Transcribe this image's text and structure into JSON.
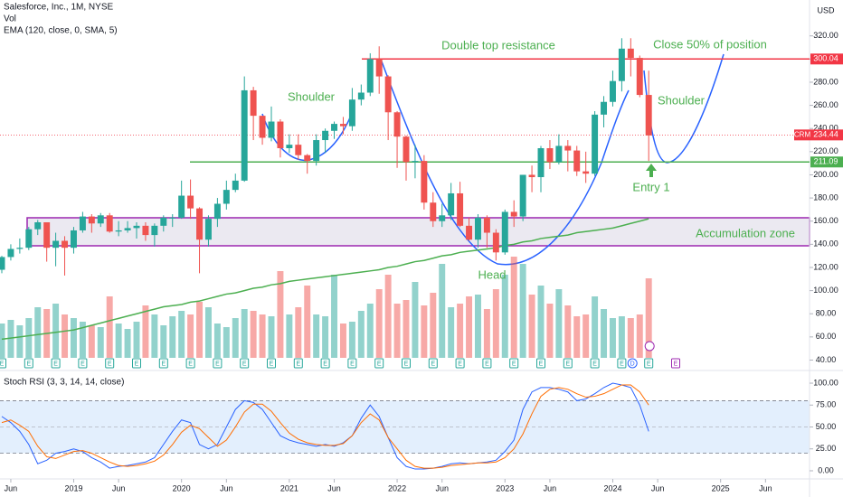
{
  "header": {
    "title": "Salesforce, Inc., 1M, NYSE",
    "volume_label": "Vol",
    "ema_label": "EMA (120, close, 0, SMA, 5)",
    "currency": "USD"
  },
  "chart_data": {
    "type": "candlestick",
    "x": [
      "2018-05",
      "2018-06",
      "2018-07",
      "2018-08",
      "2018-09",
      "2018-10",
      "2018-11",
      "2018-12",
      "2019-01",
      "2019-02",
      "2019-03",
      "2019-04",
      "2019-05",
      "2019-06",
      "2019-07",
      "2019-08",
      "2019-09",
      "2019-10",
      "2019-11",
      "2019-12",
      "2020-01",
      "2020-02",
      "2020-03",
      "2020-04",
      "2020-05",
      "2020-06",
      "2020-07",
      "2020-08",
      "2020-09",
      "2020-10",
      "2020-11",
      "2020-12",
      "2021-01",
      "2021-02",
      "2021-03",
      "2021-04",
      "2021-05",
      "2021-06",
      "2021-07",
      "2021-08",
      "2021-09",
      "2021-10",
      "2021-11",
      "2021-12",
      "2022-01",
      "2022-02",
      "2022-03",
      "2022-04",
      "2022-05",
      "2022-06",
      "2022-07",
      "2022-08",
      "2022-09",
      "2022-10",
      "2022-11",
      "2022-12",
      "2023-01",
      "2023-02",
      "2023-03",
      "2023-04",
      "2023-05",
      "2023-06",
      "2023-07",
      "2023-08",
      "2023-09",
      "2023-10",
      "2023-11",
      "2023-12",
      "2024-01",
      "2024-02",
      "2024-03",
      "2024-04",
      "2024-05"
    ],
    "ohlc": [
      [
        118,
        130,
        115,
        129
      ],
      [
        129,
        140,
        126,
        136
      ],
      [
        136,
        145,
        132,
        137
      ],
      [
        137,
        155,
        135,
        153
      ],
      [
        153,
        161,
        148,
        159
      ],
      [
        159,
        159,
        125,
        137
      ],
      [
        137,
        150,
        121,
        143
      ],
      [
        143,
        147,
        113,
        137
      ],
      [
        137,
        155,
        132,
        152
      ],
      [
        152,
        168,
        150,
        164
      ],
      [
        164,
        166,
        150,
        158
      ],
      [
        158,
        167,
        155,
        165
      ],
      [
        165,
        167,
        150,
        151
      ],
      [
        151,
        160,
        147,
        152
      ],
      [
        152,
        160,
        150,
        154
      ],
      [
        154,
        159,
        145,
        156
      ],
      [
        156,
        159,
        143,
        148
      ],
      [
        148,
        158,
        138,
        156
      ],
      [
        156,
        165,
        151,
        163
      ],
      [
        163,
        166,
        155,
        163
      ],
      [
        163,
        195,
        162,
        182
      ],
      [
        182,
        196,
        162,
        171
      ],
      [
        171,
        172,
        115,
        144
      ],
      [
        144,
        165,
        138,
        162
      ],
      [
        162,
        180,
        155,
        175
      ],
      [
        175,
        195,
        170,
        187
      ],
      [
        187,
        201,
        185,
        195
      ],
      [
        195,
        285,
        194,
        273
      ],
      [
        273,
        276,
        230,
        251
      ],
      [
        251,
        251,
        226,
        232
      ],
      [
        232,
        259,
        229,
        246
      ],
      [
        246,
        248,
        215,
        223
      ],
      [
        223,
        235,
        219,
        226
      ],
      [
        226,
        235,
        213,
        217
      ],
      [
        217,
        218,
        201,
        212
      ],
      [
        212,
        235,
        208,
        230
      ],
      [
        230,
        240,
        219,
        238
      ],
      [
        238,
        246,
        231,
        244
      ],
      [
        244,
        250,
        235,
        242
      ],
      [
        242,
        275,
        238,
        265
      ],
      [
        265,
        278,
        260,
        271
      ],
      [
        271,
        305,
        268,
        300
      ],
      [
        300,
        311,
        270,
        285
      ],
      [
        285,
        286,
        230,
        254
      ],
      [
        254,
        255,
        206,
        233
      ],
      [
        233,
        234,
        195,
        211
      ],
      [
        211,
        226,
        197,
        212
      ],
      [
        212,
        217,
        170,
        176
      ],
      [
        176,
        185,
        155,
        160
      ],
      [
        160,
        175,
        155,
        165
      ],
      [
        165,
        193,
        161,
        184
      ],
      [
        184,
        194,
        155,
        156
      ],
      [
        156,
        163,
        143,
        144
      ],
      [
        144,
        166,
        137,
        163
      ],
      [
        163,
        165,
        137,
        150
      ],
      [
        150,
        153,
        126,
        133
      ],
      [
        133,
        170,
        131,
        168
      ],
      [
        168,
        178,
        155,
        164
      ],
      [
        164,
        200,
        160,
        200
      ],
      [
        200,
        208,
        185,
        198
      ],
      [
        198,
        225,
        185,
        223
      ],
      [
        223,
        230,
        205,
        211
      ],
      [
        211,
        235,
        209,
        225
      ],
      [
        225,
        230,
        203,
        221
      ],
      [
        221,
        225,
        199,
        203
      ],
      [
        203,
        220,
        193,
        201
      ],
      [
        201,
        255,
        199,
        252
      ],
      [
        252,
        268,
        241,
        263
      ],
      [
        263,
        290,
        259,
        281
      ],
      [
        281,
        318,
        272,
        309
      ],
      [
        309,
        318,
        285,
        301
      ],
      [
        301,
        303,
        267,
        269
      ],
      [
        269,
        290,
        212,
        234
      ]
    ],
    "volume": [
      95,
      105,
      90,
      110,
      140,
      135,
      150,
      120,
      110,
      100,
      90,
      85,
      170,
      95,
      80,
      100,
      145,
      120,
      90,
      115,
      130,
      120,
      155,
      140,
      95,
      85,
      110,
      135,
      130,
      120,
      115,
      240,
      120,
      140,
      200,
      120,
      115,
      230,
      95,
      100,
      130,
      150,
      190,
      230,
      150,
      160,
      210,
      145,
      180,
      260,
      140,
      150,
      170,
      175,
      135,
      190,
      230,
      280,
      260,
      175,
      200,
      150,
      190,
      145,
      115,
      120,
      170,
      135,
      110,
      115,
      110,
      120,
      220
    ],
    "ema": [
      58,
      59,
      60,
      61,
      62,
      63,
      64,
      65,
      66,
      68,
      70,
      72,
      74,
      76,
      78,
      80,
      82,
      84,
      86,
      87,
      88,
      90,
      91,
      93,
      95,
      97,
      98,
      100,
      102,
      103,
      105,
      106,
      108,
      109,
      110,
      111,
      112,
      113,
      114,
      115,
      116,
      117,
      118,
      120,
      121,
      123,
      125,
      126,
      128,
      130,
      131,
      133,
      134,
      135,
      136,
      137,
      139,
      140,
      142,
      143,
      145,
      146,
      147,
      148,
      150,
      151,
      152,
      153,
      154,
      156,
      158,
      160,
      162
    ],
    "up_color": "#26a69a",
    "down_color": "#ef5350",
    "ema_color": "#4caf50",
    "xlim": [
      "2018-05",
      "2025-11"
    ],
    "xticks": [
      {
        "value": "2018-06",
        "label": "Jun"
      },
      {
        "value": "2019-01",
        "label": "2019"
      },
      {
        "value": "2019-06",
        "label": "Jun"
      },
      {
        "value": "2020-01",
        "label": "2020"
      },
      {
        "value": "2020-06",
        "label": "Jun"
      },
      {
        "value": "2021-01",
        "label": "2021"
      },
      {
        "value": "2021-06",
        "label": "Jun"
      },
      {
        "value": "2022-01",
        "label": "2022"
      },
      {
        "value": "2022-06",
        "label": "Jun"
      },
      {
        "value": "2023-01",
        "label": "2023"
      },
      {
        "value": "2023-06",
        "label": "Jun"
      },
      {
        "value": "2024-01",
        "label": "2024"
      },
      {
        "value": "2024-06",
        "label": "Jun"
      },
      {
        "value": "2025-01",
        "label": "2025"
      },
      {
        "value": "2025-06",
        "label": "Jun"
      }
    ],
    "ylim": [
      31,
      351
    ],
    "yticks": [
      {
        "value": 40,
        "label": "40.00"
      },
      {
        "value": 60,
        "label": "60.00"
      },
      {
        "value": 80,
        "label": "80.00"
      },
      {
        "value": 100,
        "label": "100.00"
      },
      {
        "value": 120,
        "label": "120.00"
      },
      {
        "value": 140,
        "label": "140.00"
      },
      {
        "value": 160,
        "label": "160.00"
      },
      {
        "value": 180,
        "label": "180.00"
      },
      {
        "value": 200,
        "label": "200.00"
      },
      {
        "value": 220,
        "label": "220.00"
      },
      {
        "value": 240,
        "label": "240.00"
      },
      {
        "value": 260,
        "label": "260.00"
      },
      {
        "value": 280,
        "label": "280.00"
      },
      {
        "value": 300,
        "label": "300.00"
      },
      {
        "value": 320,
        "label": "320.00"
      }
    ],
    "levels": [
      {
        "value": 300.04,
        "color": "#f23645"
      },
      {
        "value": 211.09,
        "color": "#4caf50"
      }
    ],
    "last_price": {
      "symbol": "CRM",
      "value": 234.44,
      "color": "#f23645"
    },
    "annotations": [
      "Double top resistance",
      "Close 50% of position",
      "Shoulder",
      "Shoulder",
      "Head",
      "Entry 1",
      "Accumulation zone"
    ],
    "earnings_label": "E",
    "dividend_label": "D"
  },
  "stoch": {
    "type": "line",
    "title": "Stoch RSI (3, 3, 14, 14, close)",
    "series": [
      {
        "color": "#2962ff",
        "values": [
          62,
          55,
          45,
          30,
          8,
          12,
          20,
          22,
          25,
          22,
          15,
          10,
          3,
          5,
          6,
          8,
          10,
          15,
          30,
          45,
          58,
          55,
          30,
          25,
          30,
          50,
          70,
          80,
          78,
          70,
          55,
          40,
          35,
          32,
          30,
          28,
          30,
          28,
          32,
          40,
          60,
          75,
          62,
          38,
          15,
          5,
          2,
          2,
          3,
          5,
          8,
          9,
          8,
          9,
          10,
          12,
          22,
          35,
          70,
          90,
          95,
          95,
          93,
          90,
          80,
          82,
          88,
          95,
          100,
          98,
          95,
          75,
          45
        ]
      },
      {
        "color": "#ff6d00",
        "values": [
          55,
          58,
          52,
          45,
          28,
          16,
          14,
          18,
          22,
          23,
          20,
          15,
          10,
          6,
          5,
          6,
          8,
          11,
          18,
          30,
          44,
          52,
          48,
          38,
          28,
          35,
          50,
          67,
          76,
          76,
          68,
          55,
          43,
          36,
          32,
          30,
          29,
          29,
          31,
          40,
          55,
          65,
          58,
          38,
          25,
          12,
          5,
          3,
          3,
          4,
          6,
          7,
          8,
          9,
          9,
          10,
          15,
          25,
          42,
          65,
          85,
          93,
          95,
          93,
          88,
          84,
          85,
          88,
          93,
          98,
          98,
          90,
          75
        ]
      }
    ],
    "ylim": [
      -9.3,
      112.4
    ],
    "yticks": [
      {
        "value": 0,
        "label": "0.00"
      },
      {
        "value": 25,
        "label": "25.00"
      },
      {
        "value": 50,
        "label": "50.00"
      },
      {
        "value": 75,
        "label": "75.00"
      },
      {
        "value": 100,
        "label": "100.00"
      }
    ],
    "band": [
      20,
      80
    ],
    "midline": 50
  }
}
